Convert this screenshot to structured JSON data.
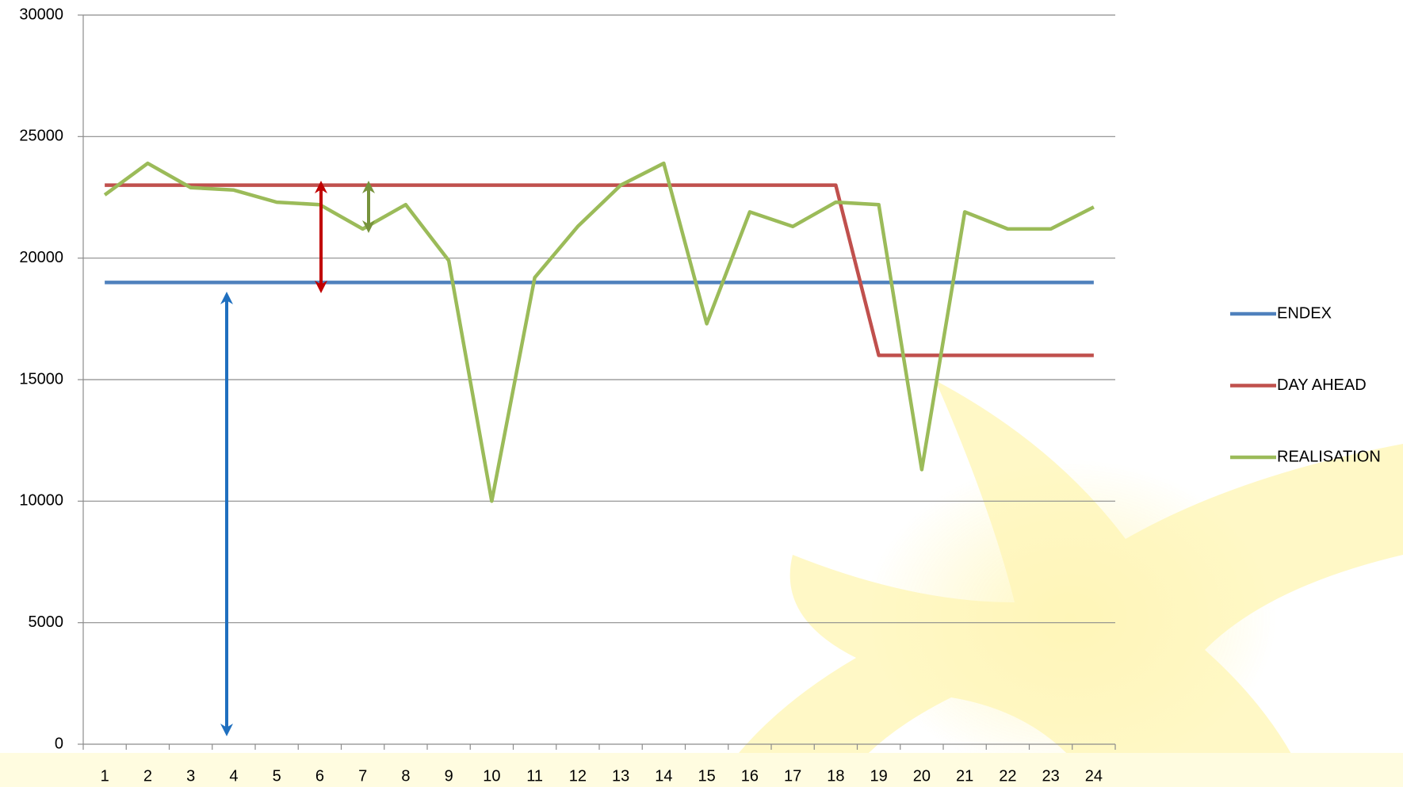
{
  "chart_data": {
    "type": "line",
    "categories": [
      "1",
      "2",
      "3",
      "4",
      "5",
      "6",
      "7",
      "8",
      "9",
      "10",
      "11",
      "12",
      "13",
      "14",
      "15",
      "16",
      "17",
      "18",
      "19",
      "20",
      "21",
      "22",
      "23",
      "24"
    ],
    "series": [
      {
        "name": "ENDEX",
        "color": "#4f81bd",
        "values": [
          19000,
          19000,
          19000,
          19000,
          19000,
          19000,
          19000,
          19000,
          19000,
          19000,
          19000,
          19000,
          19000,
          19000,
          19000,
          19000,
          19000,
          19000,
          19000,
          19000,
          19000,
          19000,
          19000,
          19000
        ]
      },
      {
        "name": "DAY AHEAD",
        "color": "#c0504d",
        "values": [
          23000,
          23000,
          23000,
          23000,
          23000,
          23000,
          23000,
          23000,
          23000,
          23000,
          23000,
          23000,
          23000,
          23000,
          23000,
          23000,
          23000,
          23000,
          16000,
          16000,
          16000,
          16000,
          16000,
          16000
        ]
      },
      {
        "name": "REALISATION",
        "color": "#9bbb59",
        "values": [
          22600,
          23900,
          22900,
          22800,
          22300,
          22200,
          21200,
          22200,
          19900,
          10000,
          19200,
          21300,
          23000,
          23900,
          17300,
          21900,
          21300,
          22300,
          22200,
          11300,
          21900,
          21200,
          21200,
          22100
        ]
      }
    ],
    "ylim": [
      0,
      30000
    ],
    "yticks": [
      0,
      5000,
      10000,
      15000,
      20000,
      25000,
      30000
    ],
    "grid": true,
    "legend": "right"
  }
}
